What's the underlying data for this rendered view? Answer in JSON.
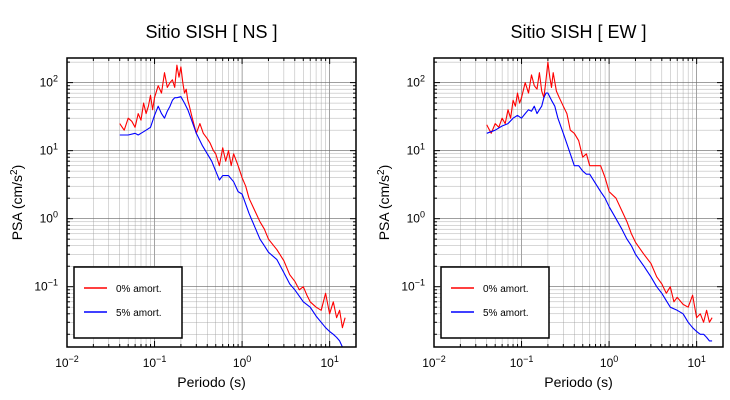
{
  "chart_data": [
    {
      "type": "line",
      "title": "Sitio SISH [ NS ]",
      "xlabel": "Periodo (s)",
      "ylabel": "PSA (cm/s",
      "ylabel_sup": "2",
      "ylabel_close": ")",
      "xscale": "log",
      "yscale": "log",
      "xlim": [
        0.01,
        20
      ],
      "ylim": [
        0.013,
        230
      ],
      "grid": true,
      "legend_position": "bottom-left",
      "xticks": [
        {
          "value": 0.01,
          "base": "10",
          "exp": "−2"
        },
        {
          "value": 0.1,
          "base": "10",
          "exp": "−1"
        },
        {
          "value": 1,
          "base": "10",
          "exp": "0"
        },
        {
          "value": 10,
          "base": "10",
          "exp": "1"
        }
      ],
      "yticks": [
        {
          "value": 0.1,
          "base": "10",
          "exp": "−1"
        },
        {
          "value": 1,
          "base": "10",
          "exp": "0"
        },
        {
          "value": 10,
          "base": "10",
          "exp": "1"
        },
        {
          "value": 100,
          "base": "10",
          "exp": "2"
        }
      ],
      "series": [
        {
          "name": "0% amort.",
          "color": "#ff0000",
          "x": [
            0.04,
            0.045,
            0.05,
            0.055,
            0.06,
            0.065,
            0.07,
            0.075,
            0.08,
            0.085,
            0.09,
            0.095,
            0.1,
            0.11,
            0.12,
            0.13,
            0.14,
            0.15,
            0.16,
            0.17,
            0.18,
            0.19,
            0.2,
            0.21,
            0.22,
            0.23,
            0.24,
            0.25,
            0.27,
            0.3,
            0.33,
            0.36,
            0.4,
            0.43,
            0.47,
            0.5,
            0.55,
            0.6,
            0.65,
            0.7,
            0.75,
            0.8,
            0.9,
            1.0,
            1.1,
            1.2,
            1.4,
            1.6,
            1.8,
            2.0,
            2.5,
            3.0,
            3.5,
            4.0,
            4.5,
            5.0,
            5.5,
            6.0,
            7.0,
            8.0,
            9.0,
            10.0,
            11.0,
            12.0,
            13.0,
            14.0,
            15.0
          ],
          "values": [
            25,
            20,
            30,
            27,
            22,
            35,
            28,
            50,
            35,
            45,
            65,
            40,
            60,
            90,
            70,
            140,
            85,
            100,
            110,
            85,
            180,
            120,
            170,
            100,
            70,
            80,
            55,
            45,
            30,
            18,
            25,
            18,
            15,
            13,
            10,
            9,
            6,
            11,
            7,
            10,
            6,
            9,
            6,
            4,
            3,
            2,
            1.3,
            0.9,
            0.7,
            0.5,
            0.35,
            0.24,
            0.15,
            0.12,
            0.09,
            0.1,
            0.075,
            0.06,
            0.05,
            0.045,
            0.08,
            0.04,
            0.06,
            0.035,
            0.045,
            0.025,
            0.035
          ]
        },
        {
          "name": "5% amort.",
          "color": "#0000ff",
          "x": [
            0.04,
            0.05,
            0.06,
            0.065,
            0.07,
            0.08,
            0.09,
            0.1,
            0.11,
            0.12,
            0.13,
            0.14,
            0.15,
            0.16,
            0.17,
            0.18,
            0.2,
            0.22,
            0.24,
            0.26,
            0.3,
            0.35,
            0.4,
            0.45,
            0.5,
            0.55,
            0.6,
            0.7,
            0.8,
            0.9,
            1.0,
            1.2,
            1.4,
            1.6,
            1.8,
            2.0,
            2.5,
            3.0,
            3.5,
            4.0,
            5.0,
            6.0,
            7.0,
            8.0,
            9.0,
            10.0,
            11.0,
            12.0,
            13.0,
            14.0,
            15.0
          ],
          "values": [
            17,
            17,
            18,
            17,
            18,
            20,
            22,
            33,
            45,
            35,
            30,
            38,
            45,
            55,
            60,
            60,
            62,
            50,
            40,
            30,
            18,
            12,
            9,
            7,
            5,
            3.7,
            4.3,
            4.3,
            3.5,
            2.5,
            2.3,
            1.2,
            0.75,
            0.5,
            0.4,
            0.32,
            0.25,
            0.16,
            0.11,
            0.09,
            0.06,
            0.05,
            0.037,
            0.03,
            0.025,
            0.022,
            0.02,
            0.018,
            0.016,
            0.013,
            0.013
          ]
        }
      ]
    },
    {
      "type": "line",
      "title": "Sitio SISH [ EW ]",
      "xlabel": "Periodo (s)",
      "ylabel": "PSA (cm/s",
      "ylabel_sup": "2",
      "ylabel_close": ")",
      "xscale": "log",
      "yscale": "log",
      "xlim": [
        0.01,
        20
      ],
      "ylim": [
        0.013,
        230
      ],
      "grid": true,
      "legend_position": "bottom-left",
      "xticks": [
        {
          "value": 0.01,
          "base": "10",
          "exp": "−2"
        },
        {
          "value": 0.1,
          "base": "10",
          "exp": "−1"
        },
        {
          "value": 1,
          "base": "10",
          "exp": "0"
        },
        {
          "value": 10,
          "base": "10",
          "exp": "1"
        }
      ],
      "yticks": [
        {
          "value": 0.1,
          "base": "10",
          "exp": "−1"
        },
        {
          "value": 1,
          "base": "10",
          "exp": "0"
        },
        {
          "value": 10,
          "base": "10",
          "exp": "1"
        },
        {
          "value": 100,
          "base": "10",
          "exp": "2"
        }
      ],
      "series": [
        {
          "name": "0% amort.",
          "color": "#ff0000",
          "x": [
            0.04,
            0.045,
            0.05,
            0.055,
            0.06,
            0.065,
            0.07,
            0.075,
            0.08,
            0.085,
            0.09,
            0.095,
            0.1,
            0.11,
            0.12,
            0.13,
            0.14,
            0.15,
            0.16,
            0.17,
            0.18,
            0.19,
            0.2,
            0.21,
            0.22,
            0.23,
            0.25,
            0.27,
            0.3,
            0.33,
            0.36,
            0.4,
            0.45,
            0.5,
            0.55,
            0.6,
            0.7,
            0.8,
            0.9,
            1.0,
            1.2,
            1.4,
            1.6,
            1.8,
            2.0,
            2.5,
            3.0,
            3.5,
            4.0,
            4.5,
            5.0,
            5.5,
            6.0,
            7.0,
            8.0,
            9.0,
            10.0,
            11.0,
            12.0,
            13.0,
            14.0,
            15.0
          ],
          "values": [
            24,
            18,
            25,
            22,
            30,
            25,
            40,
            30,
            55,
            45,
            70,
            50,
            60,
            100,
            70,
            130,
            90,
            80,
            140,
            75,
            60,
            110,
            200,
            120,
            85,
            140,
            75,
            60,
            45,
            35,
            20,
            18,
            14,
            8,
            9,
            6,
            6,
            6,
            4,
            2.5,
            2,
            1.3,
            0.9,
            0.6,
            0.45,
            0.3,
            0.22,
            0.14,
            0.11,
            0.08,
            0.1,
            0.06,
            0.07,
            0.055,
            0.05,
            0.075,
            0.035,
            0.04,
            0.03,
            0.045,
            0.03,
            0.035
          ]
        },
        {
          "name": "5% amort.",
          "color": "#0000ff",
          "x": [
            0.04,
            0.05,
            0.06,
            0.07,
            0.08,
            0.09,
            0.1,
            0.11,
            0.12,
            0.13,
            0.14,
            0.15,
            0.16,
            0.17,
            0.18,
            0.19,
            0.2,
            0.22,
            0.24,
            0.26,
            0.3,
            0.35,
            0.4,
            0.45,
            0.5,
            0.55,
            0.6,
            0.7,
            0.8,
            0.9,
            1.0,
            1.2,
            1.4,
            1.6,
            1.8,
            2.0,
            2.5,
            3.0,
            3.5,
            4.0,
            5.0,
            6.0,
            7.0,
            8.0,
            9.0,
            10.0,
            11.0,
            12.0,
            13.0,
            14.0,
            15.0
          ],
          "values": [
            18,
            20,
            23,
            25,
            30,
            33,
            30,
            35,
            40,
            38,
            45,
            35,
            40,
            45,
            60,
            70,
            70,
            55,
            45,
            30,
            18,
            10,
            6,
            6,
            5,
            4.5,
            4.5,
            3.3,
            2.5,
            2,
            1.5,
            1.0,
            0.7,
            0.5,
            0.4,
            0.3,
            0.2,
            0.14,
            0.1,
            0.08,
            0.05,
            0.045,
            0.04,
            0.03,
            0.025,
            0.022,
            0.02,
            0.02,
            0.018,
            0.016,
            0.016
          ]
        }
      ]
    }
  ]
}
